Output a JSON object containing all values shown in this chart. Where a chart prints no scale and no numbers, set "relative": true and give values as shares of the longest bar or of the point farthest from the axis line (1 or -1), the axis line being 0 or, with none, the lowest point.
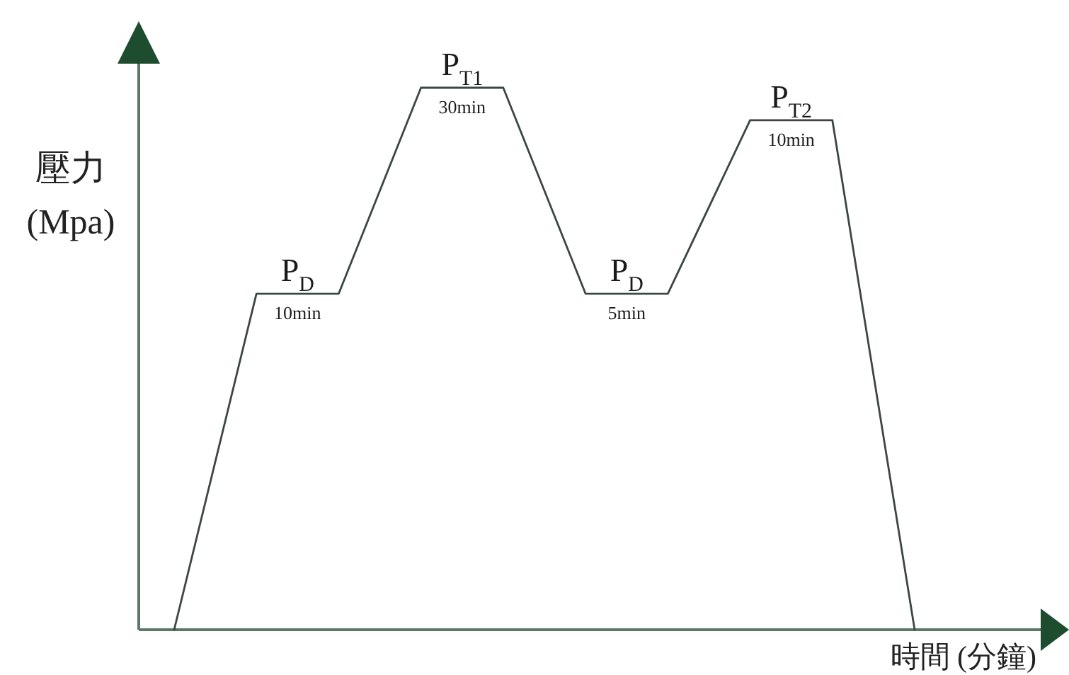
{
  "chart_data": {
    "type": "line",
    "relative": true,
    "xlabel": "時間 (分鐘)",
    "ylabel": "壓力\n(Mpa)",
    "categories": [
      null,
      null,
      null,
      null,
      null,
      null,
      null,
      null,
      null,
      null
    ],
    "series": [
      {
        "color": "#3b4741",
        "values": [
          0,
          0.62,
          0.62,
          1,
          1,
          0.62,
          0.62,
          0.94,
          0.94,
          0
        ]
      }
    ],
    "annotations": [
      {
        "text": "P$_{D}$",
        "y": 0.62
      },
      {
        "text": "10min",
        "y": 0.62
      },
      {
        "text": "P$_{T1}$",
        "y": 1
      },
      {
        "text": "30min",
        "y": 1
      },
      {
        "text": "P$_{D}$",
        "y": 0.62
      },
      {
        "text": "5min",
        "y": 0.62
      },
      {
        "text": "P$_{T2}$",
        "y": 0.94
      },
      {
        "text": "10min",
        "y": 0.94
      }
    ]
  }
}
